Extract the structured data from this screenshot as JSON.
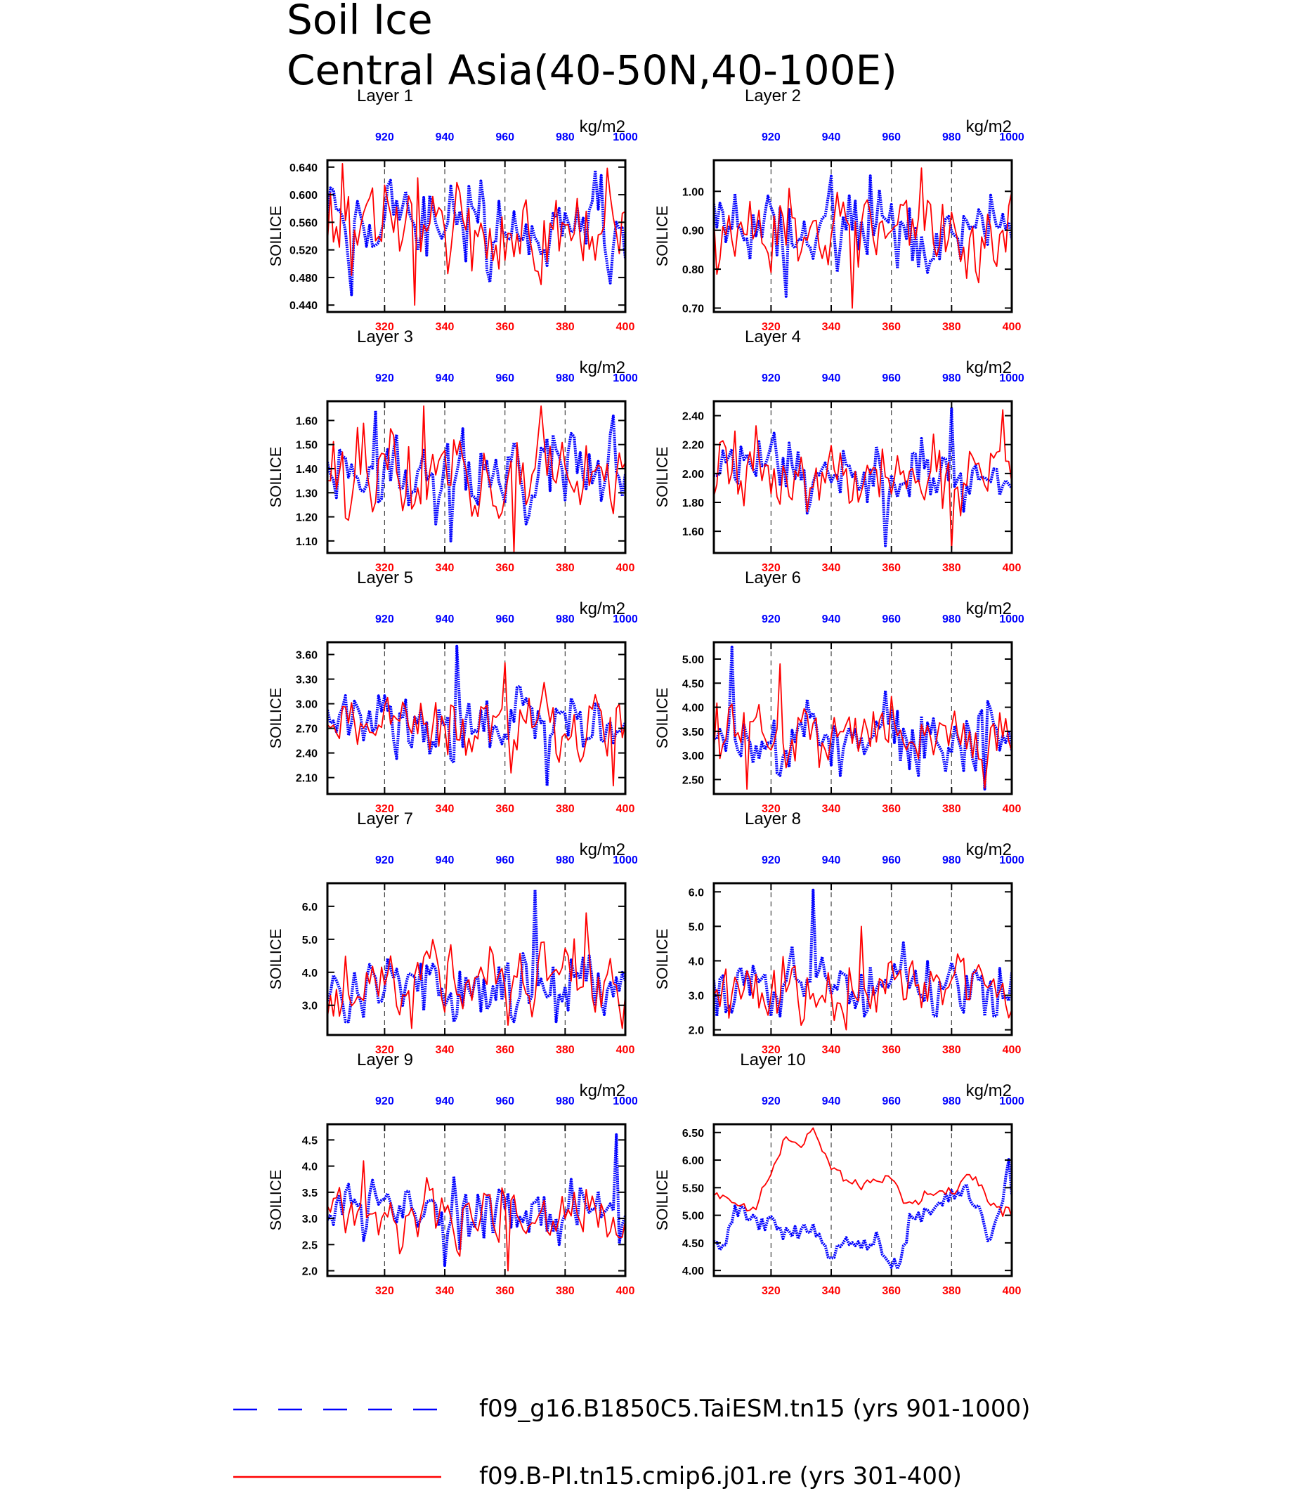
{
  "title_line1": "Soil Ice",
  "title_line2": "Central Asia(40-50N,40-100E)",
  "colors": {
    "control": "#0000ff",
    "experiment": "#ff0000",
    "frame": "#000000"
  },
  "legend": [
    {
      "label": "f09_g16.B1850C5.TaiESM.tn15 (yrs 901-1000)",
      "color": "#0000ff",
      "style": "dashed"
    },
    {
      "label": "f09.B-PI.tn15.cmip6.j01.re (yrs 301-400)",
      "color": "#ff0000",
      "style": "solid"
    }
  ],
  "chart_data": [
    {
      "type": "line",
      "title": "Layer 1",
      "ylabel": "SOILICE",
      "units": "kg/m2",
      "ylim": [
        0.43,
        0.65
      ],
      "yticks": [
        "0.440",
        "0.480",
        "0.520",
        "0.560",
        "0.600",
        "0.640"
      ],
      "x_bottom": {
        "range": [
          301,
          400
        ],
        "ticks": [
          "320",
          "340",
          "360",
          "380",
          "400"
        ]
      },
      "x_top": {
        "range": [
          901,
          1000
        ],
        "ticks": [
          "920",
          "940",
          "960",
          "980",
          "1000"
        ]
      },
      "series": [
        {
          "name": "f09_g16.B1850C5.TaiESM.tn15 (yrs 901-1000)",
          "mean": 0.555,
          "amp": 0.045,
          "min": 0.455,
          "max": 0.635,
          "seed": 11
        },
        {
          "name": "f09.B-PI.tn15.cmip6.j01.re (yrs 301-400)",
          "mean": 0.55,
          "amp": 0.05,
          "min": 0.44,
          "max": 0.645,
          "seed": 12
        }
      ]
    },
    {
      "type": "line",
      "title": "Layer 2",
      "ylabel": "SOILICE",
      "units": "kg/m2",
      "ylim": [
        0.69,
        1.08
      ],
      "yticks": [
        "0.70",
        "0.80",
        "0.90",
        "1.00"
      ],
      "x_bottom": {
        "range": [
          301,
          400
        ],
        "ticks": [
          "320",
          "340",
          "360",
          "380",
          "400"
        ]
      },
      "x_top": {
        "range": [
          901,
          1000
        ],
        "ticks": [
          "920",
          "940",
          "960",
          "980",
          "1000"
        ]
      },
      "series": [
        {
          "name": "f09_g16.B1850C5.TaiESM.tn15 (yrs 901-1000)",
          "mean": 0.9,
          "amp": 0.07,
          "min": 0.73,
          "max": 1.04,
          "seed": 21
        },
        {
          "name": "f09.B-PI.tn15.cmip6.j01.re (yrs 301-400)",
          "mean": 0.9,
          "amp": 0.08,
          "min": 0.7,
          "max": 1.06,
          "seed": 22
        }
      ]
    },
    {
      "type": "line",
      "title": "Layer 3",
      "ylabel": "SOILICE",
      "units": "kg/m2",
      "ylim": [
        1.05,
        1.68
      ],
      "yticks": [
        "1.10",
        "1.20",
        "1.30",
        "1.40",
        "1.50",
        "1.60"
      ],
      "x_bottom": {
        "range": [
          301,
          400
        ],
        "ticks": [
          "320",
          "340",
          "360",
          "380",
          "400"
        ]
      },
      "x_top": {
        "range": [
          901,
          1000
        ],
        "ticks": [
          "920",
          "940",
          "960",
          "980",
          "1000"
        ]
      },
      "series": [
        {
          "name": "f09_g16.B1850C5.TaiESM.tn15 (yrs 901-1000)",
          "mean": 1.38,
          "amp": 0.12,
          "min": 1.1,
          "max": 1.64,
          "seed": 31
        },
        {
          "name": "f09.B-PI.tn15.cmip6.j01.re (yrs 301-400)",
          "mean": 1.38,
          "amp": 0.14,
          "min": 1.05,
          "max": 1.66,
          "seed": 32
        }
      ]
    },
    {
      "type": "line",
      "title": "Layer 4",
      "ylabel": "SOILICE",
      "units": "kg/m2",
      "ylim": [
        1.45,
        2.5
      ],
      "yticks": [
        "1.60",
        "1.80",
        "2.00",
        "2.20",
        "2.40"
      ],
      "x_bottom": {
        "range": [
          301,
          400
        ],
        "ticks": [
          "320",
          "340",
          "360",
          "380",
          "400"
        ]
      },
      "x_top": {
        "range": [
          901,
          1000
        ],
        "ticks": [
          "920",
          "940",
          "960",
          "980",
          "1000"
        ]
      },
      "series": [
        {
          "name": "f09_g16.B1850C5.TaiESM.tn15 (yrs 901-1000)",
          "mean": 2.02,
          "amp": 0.18,
          "min": 1.5,
          "max": 2.45,
          "seed": 41
        },
        {
          "name": "f09.B-PI.tn15.cmip6.j01.re (yrs 301-400)",
          "mean": 2.0,
          "amp": 0.2,
          "min": 1.47,
          "max": 2.44,
          "seed": 42
        }
      ]
    },
    {
      "type": "line",
      "title": "Layer 5",
      "ylabel": "SOILICE",
      "units": "kg/m2",
      "ylim": [
        1.9,
        3.75
      ],
      "yticks": [
        "2.10",
        "2.40",
        "2.70",
        "3.00",
        "3.30",
        "3.60"
      ],
      "x_bottom": {
        "range": [
          301,
          400
        ],
        "ticks": [
          "320",
          "340",
          "360",
          "380",
          "400"
        ]
      },
      "x_top": {
        "range": [
          901,
          1000
        ],
        "ticks": [
          "920",
          "940",
          "960",
          "980",
          "1000"
        ]
      },
      "series": [
        {
          "name": "f09_g16.B1850C5.TaiESM.tn15 (yrs 901-1000)",
          "mean": 2.75,
          "amp": 0.3,
          "min": 2.0,
          "max": 3.7,
          "seed": 51
        },
        {
          "name": "f09.B-PI.tn15.cmip6.j01.re (yrs 301-400)",
          "mean": 2.75,
          "amp": 0.32,
          "min": 2.0,
          "max": 3.5,
          "seed": 52
        }
      ]
    },
    {
      "type": "line",
      "title": "Layer 6",
      "ylabel": "SOILICE",
      "units": "kg/m2",
      "ylim": [
        2.2,
        5.35
      ],
      "yticks": [
        "2.50",
        "3.00",
        "3.50",
        "4.00",
        "4.50",
        "5.00"
      ],
      "x_bottom": {
        "range": [
          301,
          400
        ],
        "ticks": [
          "320",
          "340",
          "360",
          "380",
          "400"
        ]
      },
      "x_top": {
        "range": [
          901,
          1000
        ],
        "ticks": [
          "920",
          "940",
          "960",
          "980",
          "1000"
        ]
      },
      "series": [
        {
          "name": "f09_g16.B1850C5.TaiESM.tn15 (yrs 901-1000)",
          "mean": 3.4,
          "amp": 0.55,
          "min": 2.3,
          "max": 5.25,
          "seed": 61
        },
        {
          "name": "f09.B-PI.tn15.cmip6.j01.re (yrs 301-400)",
          "mean": 3.45,
          "amp": 0.6,
          "min": 2.3,
          "max": 4.9,
          "seed": 62
        }
      ]
    },
    {
      "type": "line",
      "title": "Layer 7",
      "ylabel": "SOILICE",
      "units": "kg/m2",
      "ylim": [
        2.1,
        6.7
      ],
      "yticks": [
        "3.0",
        "4.0",
        "5.0",
        "6.0"
      ],
      "x_bottom": {
        "range": [
          301,
          400
        ],
        "ticks": [
          "320",
          "340",
          "360",
          "380",
          "400"
        ]
      },
      "x_top": {
        "range": [
          901,
          1000
        ],
        "ticks": [
          "920",
          "940",
          "960",
          "980",
          "1000"
        ]
      },
      "series": [
        {
          "name": "f09_g16.B1850C5.TaiESM.tn15 (yrs 901-1000)",
          "mean": 3.6,
          "amp": 0.8,
          "min": 2.5,
          "max": 6.5,
          "seed": 71
        },
        {
          "name": "f09.B-PI.tn15.cmip6.j01.re (yrs 301-400)",
          "mean": 3.7,
          "amp": 0.9,
          "min": 2.3,
          "max": 5.8,
          "seed": 72
        }
      ]
    },
    {
      "type": "line",
      "title": "Layer 8",
      "ylabel": "SOILICE",
      "units": "kg/m2",
      "ylim": [
        1.85,
        6.25
      ],
      "yticks": [
        "2.0",
        "3.0",
        "4.0",
        "5.0",
        "6.0"
      ],
      "x_bottom": {
        "range": [
          301,
          400
        ],
        "ticks": [
          "320",
          "340",
          "360",
          "380",
          "400"
        ]
      },
      "x_top": {
        "range": [
          901,
          1000
        ],
        "ticks": [
          "920",
          "940",
          "960",
          "980",
          "1000"
        ]
      },
      "series": [
        {
          "name": "f09_g16.B1850C5.TaiESM.tn15 (yrs 901-1000)",
          "mean": 3.3,
          "amp": 0.75,
          "min": 2.4,
          "max": 6.05,
          "seed": 81
        },
        {
          "name": "f09.B-PI.tn15.cmip6.j01.re (yrs 301-400)",
          "mean": 3.3,
          "amp": 0.7,
          "min": 2.0,
          "max": 5.0,
          "seed": 82
        }
      ]
    },
    {
      "type": "line",
      "title": "Layer 9",
      "ylabel": "SOILICE",
      "units": "kg/m2",
      "ylim": [
        1.9,
        4.8
      ],
      "yticks": [
        "2.0",
        "2.5",
        "3.0",
        "3.5",
        "4.0",
        "4.5"
      ],
      "x_bottom": {
        "range": [
          301,
          400
        ],
        "ticks": [
          "320",
          "340",
          "360",
          "380",
          "400"
        ]
      },
      "x_top": {
        "range": [
          901,
          1000
        ],
        "ticks": [
          "920",
          "940",
          "960",
          "980",
          "1000"
        ]
      },
      "series": [
        {
          "name": "f09_g16.B1850C5.TaiESM.tn15 (yrs 901-1000)",
          "mean": 3.15,
          "amp": 0.45,
          "min": 2.1,
          "max": 4.6,
          "seed": 91
        },
        {
          "name": "f09.B-PI.tn15.cmip6.j01.re (yrs 301-400)",
          "mean": 3.1,
          "amp": 0.4,
          "min": 2.0,
          "max": 4.1,
          "seed": 92
        }
      ]
    },
    {
      "type": "line",
      "title": "Layer 10",
      "ylabel": "SOILICE",
      "units": "kg/m2",
      "ylim": [
        3.9,
        6.65
      ],
      "yticks": [
        "4.00",
        "4.50",
        "5.00",
        "5.50",
        "6.00",
        "6.50"
      ],
      "x_bottom": {
        "range": [
          301,
          400
        ],
        "ticks": [
          "320",
          "340",
          "360",
          "380",
          "400"
        ]
      },
      "x_top": {
        "range": [
          901,
          1000
        ],
        "ticks": [
          "920",
          "940",
          "960",
          "980",
          "1000"
        ]
      },
      "series": [
        {
          "name": "f09_g16.B1850C5.TaiESM.tn15 (yrs 901-1000)",
          "anchors": [
            [
              901,
              4.6
            ],
            [
              904,
              4.4
            ],
            [
              908,
              5.1
            ],
            [
              912,
              5.0
            ],
            [
              916,
              4.8
            ],
            [
              920,
              4.9
            ],
            [
              925,
              4.65
            ],
            [
              935,
              4.75
            ],
            [
              940,
              4.25
            ],
            [
              945,
              4.55
            ],
            [
              950,
              4.45
            ],
            [
              955,
              4.6
            ],
            [
              960,
              4.1
            ],
            [
              963,
              4.05
            ],
            [
              966,
              4.9
            ],
            [
              970,
              4.95
            ],
            [
              975,
              5.2
            ],
            [
              980,
              5.4
            ],
            [
              985,
              5.45
            ],
            [
              988,
              5.2
            ],
            [
              992,
              4.6
            ],
            [
              996,
              5.0
            ],
            [
              999,
              6.0
            ],
            [
              1000,
              5.5
            ]
          ],
          "noise": 0.13,
          "seed": 101
        },
        {
          "name": "f09.B-PI.tn15.cmip6.j01.re (yrs 301-400)",
          "anchors": [
            [
              301,
              5.4
            ],
            [
              310,
              5.1
            ],
            [
              315,
              5.2
            ],
            [
              320,
              5.8
            ],
            [
              325,
              6.4
            ],
            [
              330,
              6.3
            ],
            [
              334,
              6.5
            ],
            [
              340,
              5.8
            ],
            [
              345,
              5.7
            ],
            [
              350,
              5.5
            ],
            [
              355,
              5.6
            ],
            [
              360,
              5.7
            ],
            [
              365,
              5.2
            ],
            [
              370,
              5.3
            ],
            [
              375,
              5.5
            ],
            [
              380,
              5.4
            ],
            [
              385,
              5.75
            ],
            [
              390,
              5.5
            ],
            [
              395,
              5.1
            ],
            [
              400,
              5.05
            ]
          ],
          "noise": 0.1,
          "seed": 102
        }
      ]
    }
  ]
}
